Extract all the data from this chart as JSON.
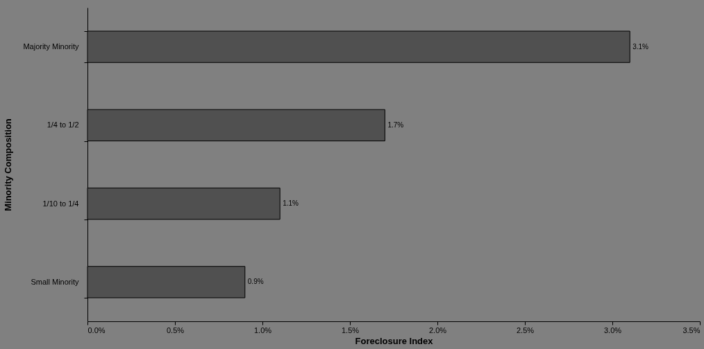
{
  "chart_data": {
    "type": "bar",
    "orientation": "horizontal",
    "xlabel": "Foreclosure Index",
    "ylabel": "Minority Composition",
    "categories": [
      "Majority Minority",
      "1/4 to 1/2",
      "1/10 to 1/4",
      "Small Minority"
    ],
    "values": [
      3.1,
      1.7,
      1.1,
      0.9
    ],
    "value_labels": [
      "3.1%",
      "1.7%",
      "1.1%",
      "0.9%"
    ],
    "color": "#505050",
    "xlim": [
      0,
      3.5
    ],
    "xticks": [
      {
        "value": 0,
        "label": "0.0%"
      },
      {
        "value": 0.5,
        "label": "0.5%"
      },
      {
        "value": 1,
        "label": "1.0%"
      },
      {
        "value": 1.5,
        "label": "1.5%"
      },
      {
        "value": 2,
        "label": "2.0%"
      },
      {
        "value": 2.5,
        "label": "2.5%"
      },
      {
        "value": 3,
        "label": "3.0%"
      },
      {
        "value": 3.5,
        "label": "3.5%"
      }
    ],
    "grid": false
  }
}
